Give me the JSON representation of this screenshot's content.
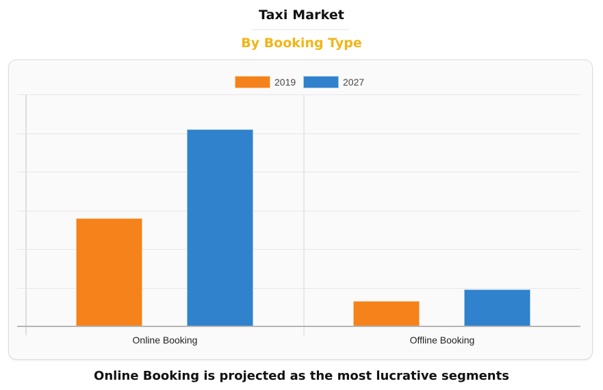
{
  "header": {
    "title": "Taxi Market",
    "subtitle": "By Booking Type"
  },
  "footer": {
    "caption": "Online Booking is projected as the most lucrative segments"
  },
  "colors": {
    "series_2019": "#f5821a",
    "series_2027": "#2f82cb",
    "subtitle": "#f2b516"
  },
  "legend": [
    {
      "label": "2019",
      "color": "#f5821a"
    },
    {
      "label": "2027",
      "color": "#2f82cb"
    }
  ],
  "chart_data": {
    "type": "bar",
    "title": "Taxi Market",
    "subtitle": "By Booking Type",
    "categories": [
      "Online Booking",
      "Offline Booking"
    ],
    "series": [
      {
        "name": "2019",
        "color": "#f5821a",
        "values": [
          2.8,
          0.65
        ]
      },
      {
        "name": "2027",
        "color": "#2f82cb",
        "values": [
          5.1,
          0.95
        ]
      }
    ],
    "xlabel": "",
    "ylabel": "",
    "ylim": [
      0,
      6
    ],
    "y_ticks_visible": false,
    "grid": true,
    "legend_position": "top",
    "note": "No y-axis tick labels shown; values are relative, read from 6 evenly spaced gridlines."
  }
}
